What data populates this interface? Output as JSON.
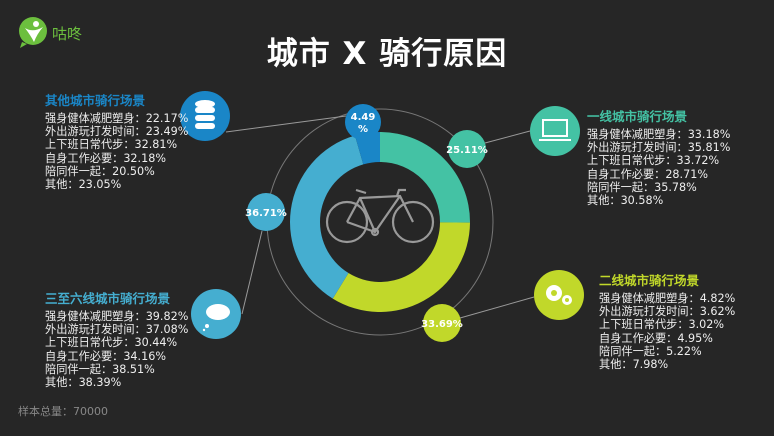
{
  "brand": {
    "name": "咕咚",
    "color": "#6cbf3e"
  },
  "title": "城市 X 骑行原因",
  "center_icon": "bicycle-icon",
  "chart_data": {
    "type": "pie",
    "categories": [
      "一线城市",
      "二线城市",
      "三至六线城市",
      "其他城市"
    ],
    "values": [
      25.11,
      33.69,
      36.71,
      4.49
    ],
    "labels": [
      "25.11%",
      "33.69%",
      "36.71%",
      "4.49%"
    ],
    "colors": [
      "#44c2a4",
      "#c1d82a",
      "#45aed0",
      "#1a86c7"
    ]
  },
  "groups": [
    {
      "title": "一线城市骑行场景",
      "icon": "laptop-icon",
      "color": "#44c2a4",
      "items": [
        "强身健体减肥塑身：33.18%",
        "外出游玩打发时间：35.81%",
        "上下班日常代步：33.72%",
        "自身工作必要：28.71%",
        "陪同伴一起：35.78%",
        "其他：30.58%"
      ]
    },
    {
      "title": "二线城市骑行场景",
      "icon": "gears-icon",
      "color": "#c1d82a",
      "items": [
        "强身健体减肥塑身：4.82%",
        "外出游玩打发时间：3.62%",
        "上下班日常代步：3.02%",
        "自身工作必要：4.95%",
        "陪同伴一起：5.22%",
        "其他：7.98%"
      ]
    },
    {
      "title": "三至六线城市骑行场景",
      "icon": "cloud-thought-icon",
      "color": "#45aed0",
      "items": [
        "强身健体减肥塑身：39.82%",
        "外出游玩打发时间：37.08%",
        "上下班日常代步：30.44%",
        "自身工作必要：34.16%",
        "陪同伴一起：38.51%",
        "其他：38.39%"
      ]
    },
    {
      "title": "其他城市骑行场景",
      "icon": "database-icon",
      "color": "#1a86c7",
      "items": [
        "强身健体减肥塑身：22.17%",
        "外出游玩打发时间：23.49%",
        "上下班日常代步：32.81%",
        "自身工作必要：32.18%",
        "陪同伴一起：20.50%",
        "其他：23.05%"
      ]
    }
  ],
  "footer": "样本总量：70000"
}
